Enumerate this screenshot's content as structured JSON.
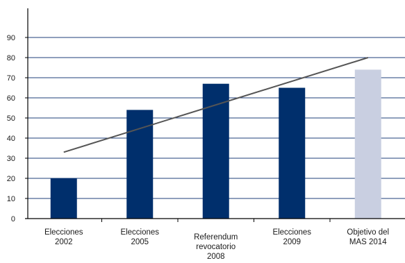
{
  "chart_data": {
    "type": "bar",
    "categories": [
      [
        "Elecciones",
        "2002"
      ],
      [
        "Elecciones",
        "2005"
      ],
      [
        "Referendum",
        "revocatorio",
        "2008"
      ],
      [
        "Elecciones",
        "2009"
      ],
      [
        "Objetivo del",
        "MAS 2014"
      ]
    ],
    "series": [
      {
        "values": [
          20,
          54,
          67,
          65,
          74
        ],
        "colors": [
          "#002f6c",
          "#002f6c",
          "#002f6c",
          "#002f6c",
          "#c9cfe1"
        ]
      }
    ],
    "trendline": {
      "type": "linear",
      "from": {
        "category_index": 0,
        "value": 33
      },
      "to": {
        "category_index": 4,
        "value": 80
      },
      "color": "#555555"
    },
    "ylim": [
      0,
      90
    ],
    "yticks": [
      0,
      10,
      20,
      30,
      40,
      50,
      60,
      70,
      80,
      90
    ],
    "grid": true,
    "gridline_color": "#1f3f7a",
    "title": "",
    "xlabel": "",
    "ylabel": ""
  }
}
